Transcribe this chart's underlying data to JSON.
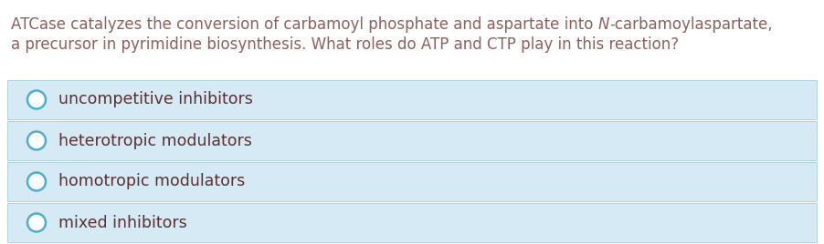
{
  "question_line1_pre": "ATCase catalyzes the conversion of carbamoyl phosphate and aspartate into ",
  "question_line1_italic": "N",
  "question_line1_post": "-carbamoylaspartate,",
  "question_line2": "a precursor in pyrimidine biosynthesis. What roles do ATP and CTP play in this reaction?",
  "options": [
    "uncompetitive inhibitors",
    "heterotropic modulators",
    "homotropic modulators",
    "mixed inhibitors"
  ],
  "bg_color": "#ffffff",
  "option_bg_color": "#d6eaf5",
  "option_border_color": "#b0cfe0",
  "question_text_color": "#8b6060",
  "option_text_color": "#5a3030",
  "circle_edge_color": "#4ab0cc",
  "fig_width": 9.02,
  "fig_height": 2.68,
  "dpi": 100,
  "question_fontsize": 12.0,
  "option_fontsize": 12.5
}
